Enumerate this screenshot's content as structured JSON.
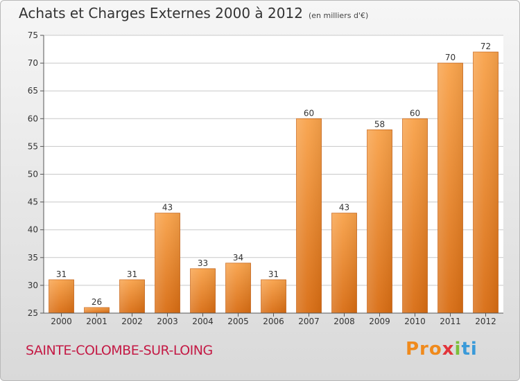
{
  "title": "Achats et Charges Externes 2000 à 2012",
  "subtitle": "(en milliers d'€)",
  "town": "SAINTE-COLOMBE-SUR-LOING",
  "brand": {
    "p1": "Pro",
    "p2": "x",
    "p3": "i",
    "p4": "ti",
    "name": "Proxiti"
  },
  "colors": {
    "bar_top": "#f8a24a",
    "bar_bottom": "#d86c12",
    "town": "#c41a45",
    "grid": "#c8c8c8"
  },
  "chart_data": {
    "type": "bar",
    "categories": [
      "2000",
      "2001",
      "2002",
      "2003",
      "2004",
      "2005",
      "2006",
      "2007",
      "2008",
      "2009",
      "2010",
      "2011",
      "2012"
    ],
    "values": [
      31,
      26,
      31,
      43,
      33,
      34,
      31,
      60,
      43,
      58,
      60,
      70,
      72
    ],
    "data_labels": [
      "31",
      "26",
      "31",
      "43",
      "33",
      "34",
      "31",
      "60",
      "43",
      "58",
      "60",
      "70",
      "72"
    ],
    "y_ticks": [
      "25",
      "30",
      "35",
      "40",
      "45",
      "50",
      "55",
      "60",
      "65",
      "70",
      "75"
    ],
    "ylim": [
      25,
      75
    ],
    "grid": true,
    "xlabel": "",
    "ylabel": ""
  }
}
